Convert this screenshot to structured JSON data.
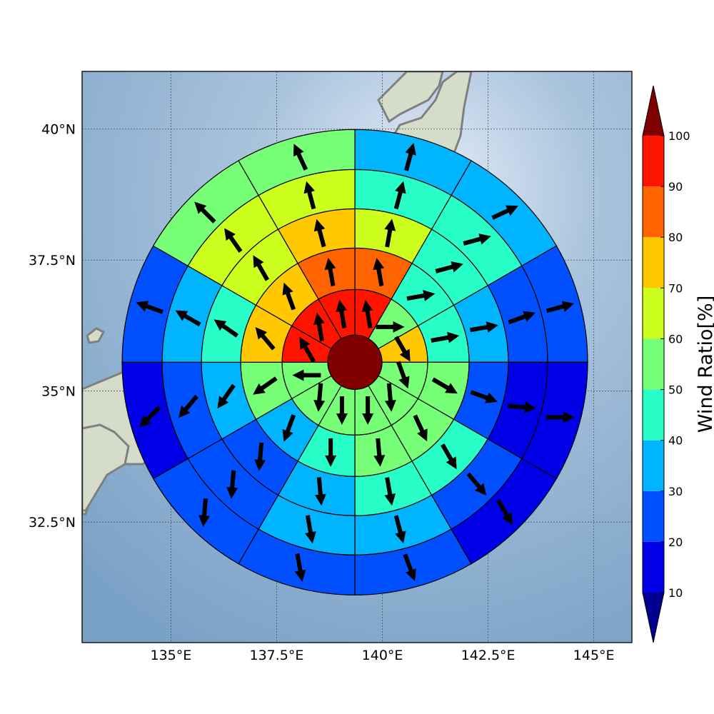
{
  "map": {
    "lon_range": [
      132.9,
      145.9
    ],
    "lat_range": [
      30.2,
      41.1
    ],
    "center": {
      "lon": 139.35,
      "lat": 35.55
    },
    "lon_ticks": [
      {
        "value": 135.0,
        "label": "135°E"
      },
      {
        "value": 137.5,
        "label": "137.5°E"
      },
      {
        "value": 140.0,
        "label": "140°E"
      },
      {
        "value": 142.5,
        "label": "142.5°E"
      },
      {
        "value": 145.0,
        "label": "145°E"
      }
    ],
    "lat_ticks": [
      {
        "value": 40.0,
        "label": "40°N"
      },
      {
        "value": 37.5,
        "label": "37.5°N"
      },
      {
        "value": 35.0,
        "label": "35°N"
      },
      {
        "value": 32.5,
        "label": "32.5°N"
      }
    ],
    "grid": true,
    "coastline_color": "#808080",
    "ocean_color": "#86a9cb",
    "land_color": "#cfd8c4"
  },
  "colorbar": {
    "label": "Wind Ratio[%]",
    "ticks": [
      "10",
      "20",
      "30",
      "40",
      "50",
      "60",
      "70",
      "80",
      "90",
      "100"
    ],
    "levels": [
      10,
      20,
      30,
      40,
      50,
      60,
      70,
      80,
      90,
      100
    ],
    "colors": [
      "#0000e6",
      "#0050ff",
      "#00b4ff",
      "#28ffc8",
      "#78ff78",
      "#ccff1e",
      "#ffc800",
      "#ff6400",
      "#ff1400"
    ],
    "under_color": "#000090",
    "over_color": "#800000",
    "extend": "both"
  },
  "chart_data": {
    "type": "polar-sector-map",
    "rings": 5,
    "sectors_per_ring": 12,
    "sector_order": "clockwise from north",
    "center_value": 100,
    "ring_values": [
      [
        90,
        50,
        70,
        50,
        50,
        50,
        50,
        50,
        50,
        90,
        90,
        90
      ],
      [
        80,
        40,
        40,
        50,
        50,
        50,
        40,
        30,
        50,
        70,
        70,
        80
      ],
      [
        60,
        40,
        30,
        20,
        40,
        40,
        30,
        20,
        30,
        40,
        60,
        70
      ],
      [
        40,
        40,
        20,
        10,
        20,
        30,
        30,
        20,
        20,
        30,
        60,
        60
      ],
      [
        30,
        30,
        20,
        10,
        10,
        20,
        20,
        20,
        10,
        20,
        50,
        50
      ]
    ],
    "wind_direction_deg": [
      [
        -10,
        90,
        150,
        160,
        175,
        180,
        180,
        185,
        270,
        -30,
        -10,
        -10
      ],
      [
        -10,
        80,
        80,
        120,
        155,
        175,
        180,
        200,
        235,
        -40,
        -20,
        -10
      ],
      [
        10,
        75,
        80,
        110,
        150,
        170,
        175,
        185,
        215,
        -55,
        -30,
        -15
      ],
      [
        15,
        75,
        70,
        95,
        140,
        165,
        170,
        185,
        220,
        -60,
        -35,
        -15
      ],
      [
        15,
        65,
        75,
        90,
        150,
        160,
        170,
        185,
        225,
        -70,
        -45,
        -25
      ]
    ]
  }
}
